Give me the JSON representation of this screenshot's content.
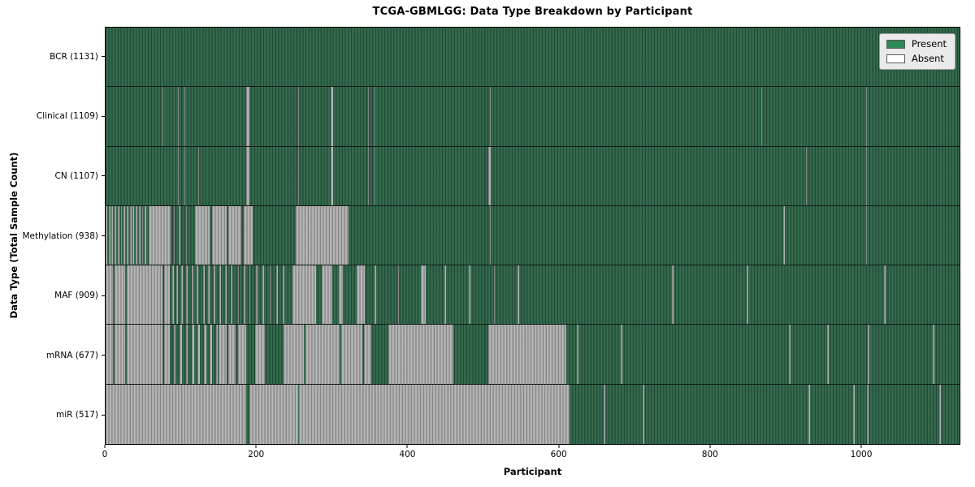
{
  "chart_data": {
    "type": "heatmap",
    "title": "TCGA-GBMLGG: Data Type Breakdown by Participant",
    "xlabel": "Participant",
    "ylabel": "Data Type (Total Sample Count)",
    "x_max": 1131,
    "x_ticks": [
      0,
      200,
      400,
      600,
      800,
      1000
    ],
    "grid": false,
    "legend": {
      "position": "upper right",
      "items": [
        {
          "label": "Present",
          "color": "#2e8b57"
        },
        {
          "label": "Absent",
          "color": "#ffffff"
        }
      ]
    },
    "colors": {
      "present": "#2e8b57",
      "absent_fill": "#ffffff",
      "absent_rendered": "#a0a0a0",
      "row_separator": "#141414",
      "legend_background": "#eaeaea"
    },
    "rows": [
      {
        "name": "bcr",
        "label": "BCR (1131)",
        "present_count": 1131,
        "absent_segments": []
      },
      {
        "name": "clinical",
        "label": "Clinical (1109)",
        "present_count": 1109,
        "absent_segments": [
          [
            75,
            76
          ],
          [
            96,
            97
          ],
          [
            104,
            105
          ],
          [
            186,
            191
          ],
          [
            255,
            256
          ],
          [
            298,
            301
          ],
          [
            348,
            349
          ],
          [
            356,
            357
          ],
          [
            417,
            418
          ],
          [
            509,
            510
          ],
          [
            868,
            869
          ],
          [
            1007,
            1008
          ]
        ]
      },
      {
        "name": "cn",
        "label": "CN (1107)",
        "present_count": 1107,
        "absent_segments": [
          [
            77,
            78
          ],
          [
            96,
            97
          ],
          [
            104,
            105
          ],
          [
            123,
            124
          ],
          [
            186,
            191
          ],
          [
            255,
            256
          ],
          [
            298,
            301
          ],
          [
            348,
            349
          ],
          [
            356,
            357
          ],
          [
            417,
            418
          ],
          [
            507,
            510
          ],
          [
            928,
            929
          ],
          [
            1007,
            1008
          ]
        ]
      },
      {
        "name": "methylation",
        "label": "Methylation (938)",
        "present_count": 938,
        "absent_segments": [
          [
            0,
            2
          ],
          [
            4,
            6
          ],
          [
            8,
            10
          ],
          [
            12,
            14
          ],
          [
            16,
            18
          ],
          [
            20,
            22
          ],
          [
            24,
            26
          ],
          [
            28,
            30
          ],
          [
            32,
            34
          ],
          [
            36,
            38
          ],
          [
            40,
            42
          ],
          [
            44,
            46
          ],
          [
            48,
            50
          ],
          [
            52,
            54
          ],
          [
            57,
            86
          ],
          [
            90,
            92
          ],
          [
            97,
            99
          ],
          [
            106,
            108
          ],
          [
            118,
            138
          ],
          [
            141,
            160
          ],
          [
            163,
            180
          ],
          [
            183,
            195
          ],
          [
            252,
            322
          ],
          [
            509,
            510
          ],
          [
            898,
            900
          ],
          [
            1007,
            1008
          ]
        ]
      },
      {
        "name": "maf",
        "label": "MAF (909)",
        "present_count": 909,
        "absent_segments": [
          [
            0,
            10
          ],
          [
            12,
            26
          ],
          [
            28,
            75
          ],
          [
            77,
            85
          ],
          [
            88,
            90
          ],
          [
            94,
            96
          ],
          [
            100,
            102
          ],
          [
            107,
            109
          ],
          [
            114,
            116
          ],
          [
            121,
            123
          ],
          [
            129,
            131
          ],
          [
            136,
            138
          ],
          [
            143,
            145
          ],
          [
            151,
            153
          ],
          [
            158,
            160
          ],
          [
            166,
            168
          ],
          [
            175,
            177
          ],
          [
            183,
            185
          ],
          [
            190,
            192
          ],
          [
            199,
            201
          ],
          [
            208,
            210
          ],
          [
            217,
            219
          ],
          [
            226,
            228
          ],
          [
            235,
            237
          ],
          [
            247,
            279
          ],
          [
            286,
            300
          ],
          [
            309,
            314
          ],
          [
            332,
            343
          ],
          [
            356,
            358
          ],
          [
            387,
            389
          ],
          [
            418,
            424
          ],
          [
            449,
            451
          ],
          [
            481,
            483
          ],
          [
            514,
            516
          ],
          [
            546,
            548
          ],
          [
            750,
            752
          ],
          [
            849,
            851
          ],
          [
            1031,
            1033
          ]
        ]
      },
      {
        "name": "mrna",
        "label": "mRNA (677)",
        "present_count": 677,
        "absent_segments": [
          [
            0,
            10
          ],
          [
            12,
            26
          ],
          [
            28,
            75
          ],
          [
            77,
            85
          ],
          [
            90,
            93
          ],
          [
            98,
            101
          ],
          [
            106,
            109
          ],
          [
            114,
            117
          ],
          [
            122,
            125
          ],
          [
            130,
            133
          ],
          [
            138,
            141
          ],
          [
            146,
            149
          ],
          [
            150,
            160
          ],
          [
            163,
            172
          ],
          [
            175,
            186
          ],
          [
            198,
            211
          ],
          [
            236,
            263
          ],
          [
            265,
            310
          ],
          [
            312,
            340
          ],
          [
            342,
            352
          ],
          [
            375,
            461
          ],
          [
            507,
            610
          ],
          [
            624,
            626
          ],
          [
            682,
            684
          ],
          [
            905,
            907
          ],
          [
            956,
            958
          ],
          [
            1009,
            1012
          ],
          [
            1096,
            1098
          ]
        ]
      },
      {
        "name": "mir",
        "label": "miR (517)",
        "present_count": 517,
        "absent_segments": [
          [
            0,
            186
          ],
          [
            190,
            255
          ],
          [
            256,
            614
          ],
          [
            660,
            662
          ],
          [
            711,
            713
          ],
          [
            931,
            933
          ],
          [
            990,
            992
          ],
          [
            1008,
            1011
          ],
          [
            1104,
            1106
          ]
        ]
      }
    ]
  }
}
